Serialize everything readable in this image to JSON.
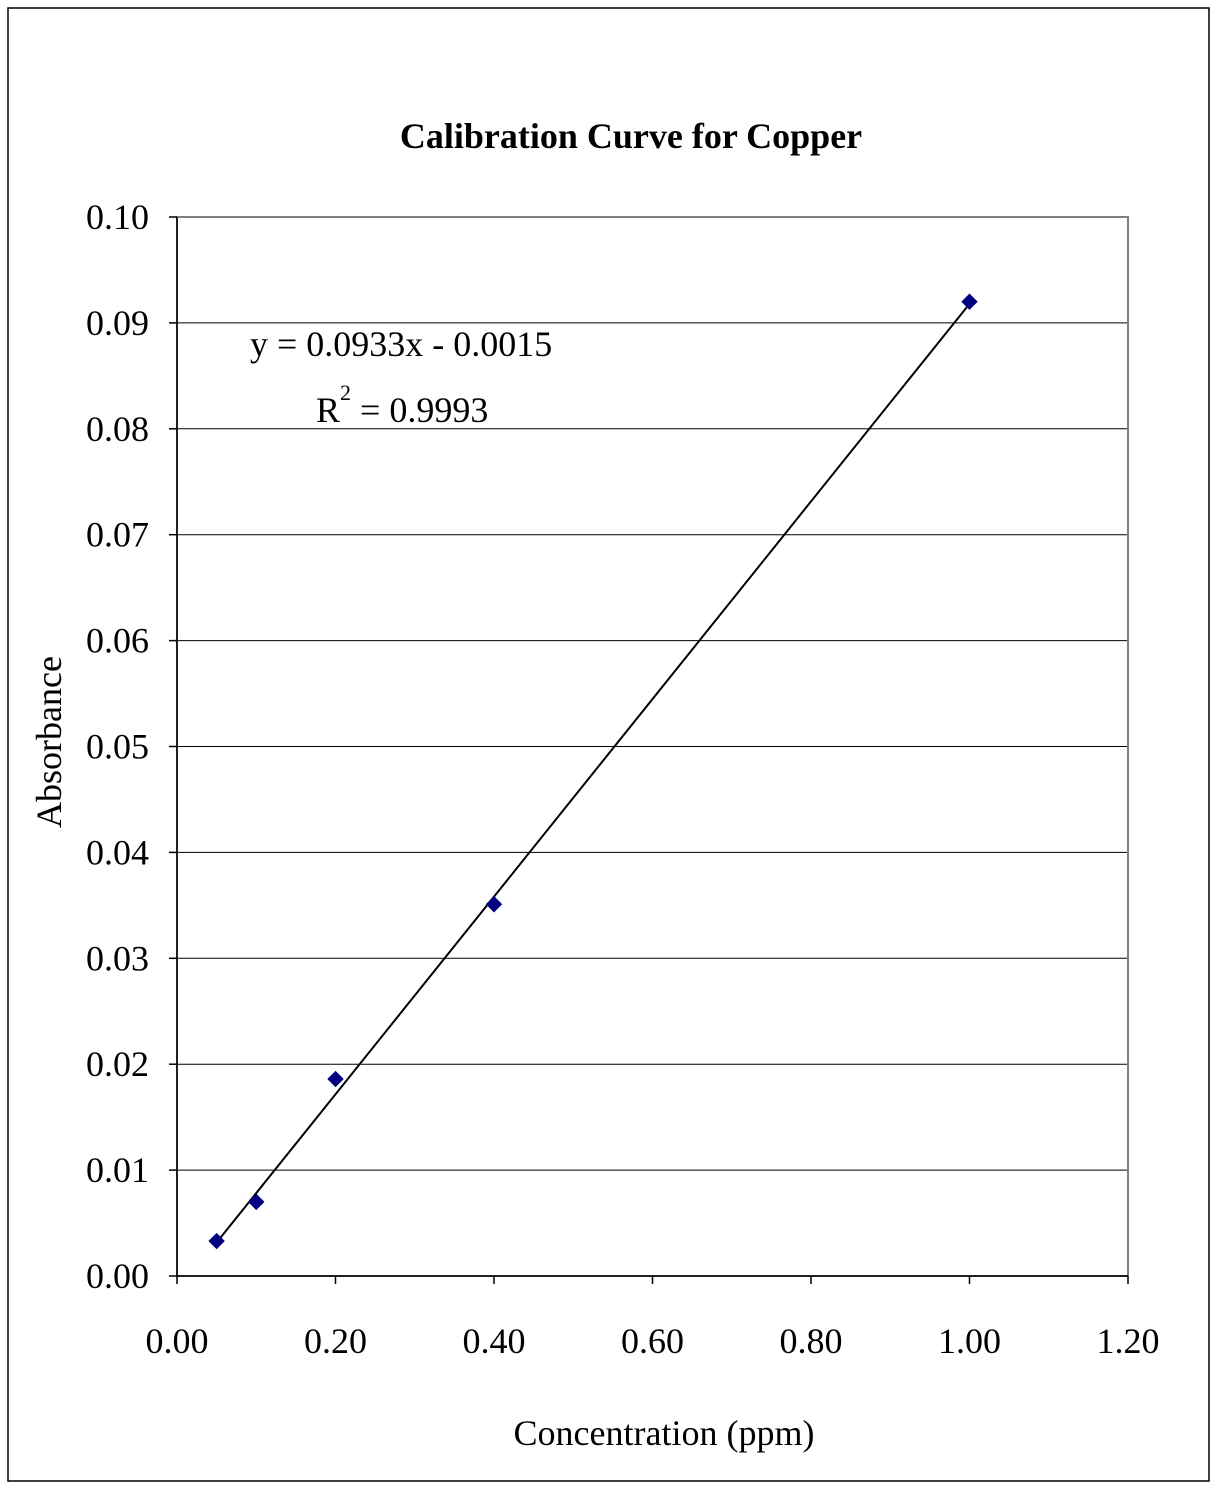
{
  "chart_data": {
    "type": "scatter",
    "title": "Calibration Curve for Copper",
    "xlabel": "Concentration (ppm)",
    "ylabel": "Absorbance",
    "xlim": [
      0,
      1.2
    ],
    "ylim": [
      0,
      0.1
    ],
    "x_ticks": [
      "0.00",
      "0.20",
      "0.40",
      "0.60",
      "0.80",
      "1.00",
      "1.20"
    ],
    "y_ticks": [
      "0.00",
      "0.01",
      "0.02",
      "0.03",
      "0.04",
      "0.05",
      "0.06",
      "0.07",
      "0.08",
      "0.09",
      "0.10"
    ],
    "grid": "horizontal",
    "legend": "none",
    "series": [
      {
        "x": [
          0.05,
          0.1,
          0.2,
          0.4,
          1.0
        ],
        "y": [
          0.0033,
          0.007,
          0.0186,
          0.0351,
          0.092
        ],
        "marker": "diamond",
        "color": "#000080"
      }
    ],
    "trendline": {
      "type": "linear",
      "slope": 0.0933,
      "intercept": -0.0015,
      "x_range": [
        0.05,
        1.0
      ],
      "color": "#000000"
    },
    "annotations": {
      "equation": "y = 0.0933x - 0.0015",
      "r2_prefix": "R",
      "r2_sup": "2",
      "r2_suffix": " = 0.9993"
    }
  }
}
